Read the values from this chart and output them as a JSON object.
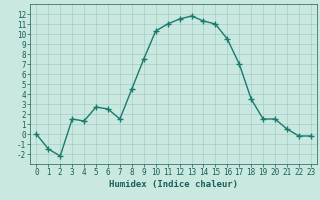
{
  "x": [
    0,
    1,
    2,
    3,
    4,
    5,
    6,
    7,
    8,
    9,
    10,
    11,
    12,
    13,
    14,
    15,
    16,
    17,
    18,
    19,
    20,
    21,
    22,
    23
  ],
  "y": [
    0,
    -1.5,
    -2.2,
    1.5,
    1.3,
    2.7,
    2.5,
    1.5,
    4.5,
    7.5,
    10.3,
    11.0,
    11.5,
    11.8,
    11.3,
    11.0,
    9.5,
    7.0,
    3.5,
    1.5,
    1.5,
    0.5,
    -0.2,
    -0.2
  ],
  "line_color": "#1a7a6e",
  "marker": "+",
  "markersize": 4,
  "linewidth": 1.0,
  "bg_color": "#c8e8e0",
  "grid_color": "#a8ccc4",
  "xlabel": "Humidex (Indice chaleur)",
  "xlabel_fontsize": 6.5,
  "xlabel_color": "#1a5f58",
  "tick_color": "#1a5f58",
  "tick_fontsize": 5.5,
  "xlim": [
    -0.5,
    23.5
  ],
  "ylim": [
    -3,
    13
  ],
  "yticks": [
    -2,
    -1,
    0,
    1,
    2,
    3,
    4,
    5,
    6,
    7,
    8,
    9,
    10,
    11,
    12
  ],
  "xticks": [
    0,
    1,
    2,
    3,
    4,
    5,
    6,
    7,
    8,
    9,
    10,
    11,
    12,
    13,
    14,
    15,
    16,
    17,
    18,
    19,
    20,
    21,
    22,
    23
  ]
}
